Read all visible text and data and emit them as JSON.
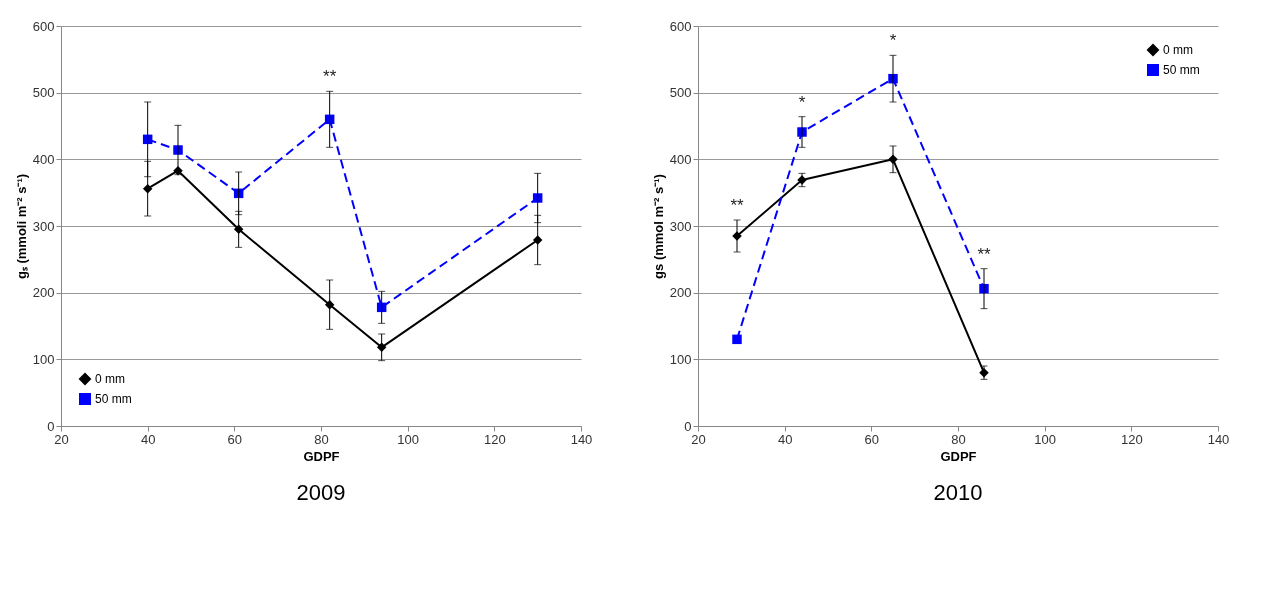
{
  "chart_data": [
    {
      "type": "line",
      "title": "2009",
      "xlabel": "GDPF",
      "ylabel": "gₛ (mmoli m⁻² s⁻¹)",
      "xlim": [
        20,
        140
      ],
      "xticks": [
        20,
        40,
        60,
        80,
        100,
        120,
        140
      ],
      "ylim": [
        0,
        600
      ],
      "yticks": [
        0,
        100,
        200,
        300,
        400,
        500,
        600
      ],
      "grid": "y",
      "legend": "bottom left",
      "series": [
        {
          "name": "0 mm",
          "color": "#000000",
          "marker": "diamond",
          "line_style": "solid",
          "x": [
            40,
            47,
            61,
            82,
            94,
            130
          ],
          "values": [
            356,
            383,
            295,
            182,
            118,
            279
          ],
          "errors": [
            41,
            null,
            27,
            37,
            20,
            37
          ]
        },
        {
          "name": "50 mm",
          "color": "#0000ff",
          "marker": "square",
          "line_style": "dashed",
          "x": [
            40,
            47,
            61,
            82,
            94,
            130
          ],
          "values": [
            430,
            414,
            349,
            460,
            178,
            342
          ],
          "errors": [
            56,
            37,
            32,
            42,
            24,
            37
          ]
        }
      ],
      "annotations": [
        {
          "text": "**",
          "x": 82,
          "y": 460
        }
      ]
    },
    {
      "type": "line",
      "title": "2010",
      "xlabel": "GDPF",
      "ylabel": "gs (mmol m⁻² s⁻¹)",
      "xlim": [
        20,
        140
      ],
      "xticks": [
        20,
        40,
        60,
        80,
        100,
        120,
        140
      ],
      "ylim": [
        0,
        600
      ],
      "yticks": [
        0,
        100,
        200,
        300,
        400,
        500,
        600
      ],
      "grid": "y",
      "legend": "top right",
      "series": [
        {
          "name": "0 mm",
          "color": "#000000",
          "marker": "diamond",
          "line_style": "solid",
          "x": [
            29,
            44,
            65,
            86
          ],
          "values": [
            285,
            369,
            400,
            80
          ],
          "errors": [
            24,
            10,
            20,
            10
          ]
        },
        {
          "name": "50 mm",
          "color": "#0000ff",
          "marker": "square",
          "line_style": "dashed",
          "x": [
            29,
            44,
            65,
            86
          ],
          "values": [
            130,
            441,
            521,
            206
          ],
          "errors": [
            null,
            23,
            35,
            30
          ]
        }
      ],
      "annotations": [
        {
          "text": "**",
          "x": 29,
          "y": 285
        },
        {
          "text": "*",
          "x": 44,
          "y": 441
        },
        {
          "text": "*",
          "x": 65,
          "y": 521
        },
        {
          "text": "**",
          "x": 86,
          "y": 206
        }
      ]
    }
  ]
}
